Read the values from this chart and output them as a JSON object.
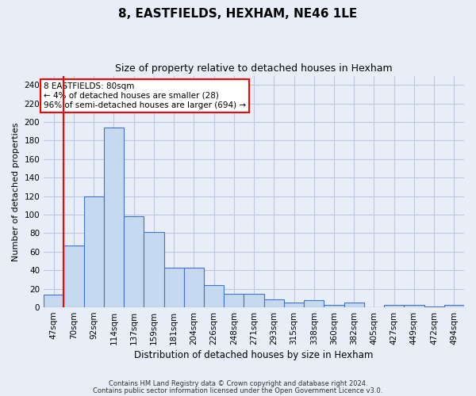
{
  "title": "8, EASTFIELDS, HEXHAM, NE46 1LE",
  "subtitle": "Size of property relative to detached houses in Hexham",
  "xlabel": "Distribution of detached houses by size in Hexham",
  "ylabel": "Number of detached properties",
  "categories": [
    "47sqm",
    "70sqm",
    "92sqm",
    "114sqm",
    "137sqm",
    "159sqm",
    "181sqm",
    "204sqm",
    "226sqm",
    "248sqm",
    "271sqm",
    "293sqm",
    "315sqm",
    "338sqm",
    "360sqm",
    "382sqm",
    "405sqm",
    "427sqm",
    "449sqm",
    "472sqm",
    "494sqm"
  ],
  "values": [
    14,
    67,
    120,
    194,
    98,
    81,
    43,
    43,
    24,
    15,
    15,
    9,
    5,
    8,
    3,
    5,
    0,
    3,
    3,
    1,
    3
  ],
  "bar_color": "#c5d9f0",
  "bar_edge_color": "#4472c4",
  "bar_edge_width": 0.8,
  "red_line_index": 1,
  "annotation_text": "8 EASTFIELDS: 80sqm\n← 4% of detached houses are smaller (28)\n96% of semi-detached houses are larger (694) →",
  "annotation_box_color": "white",
  "annotation_box_edge_color": "red",
  "grid_color": "#c0c8e0",
  "background_color": "#e8eef8",
  "ylim": [
    0,
    250
  ],
  "yticks": [
    0,
    20,
    40,
    60,
    80,
    100,
    120,
    140,
    160,
    180,
    200,
    220,
    240
  ],
  "footnote1": "Contains HM Land Registry data © Crown copyright and database right 2024.",
  "footnote2": "Contains public sector information licensed under the Open Government Licence v3.0.",
  "title_fontsize": 11,
  "subtitle_fontsize": 9,
  "ylabel_fontsize": 8,
  "xlabel_fontsize": 8.5,
  "tick_fontsize": 7.5,
  "annotation_fontsize": 7.5
}
